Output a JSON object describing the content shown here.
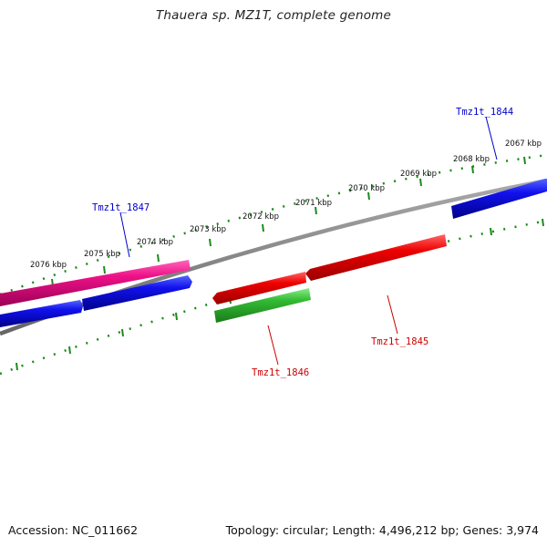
{
  "title": "Thauera sp. MZ1T, complete genome",
  "footer": {
    "accession": "Accession: NC_011662",
    "info": "Topology: circular; Length: 4,496,212 bp; Genes: 3,974"
  },
  "colors": {
    "backbone": "#808080",
    "tick": "#1a8a1a",
    "label_blue": "#0000cc",
    "label_red": "#cc0000"
  },
  "kbp_labels": [
    "2067 kbp",
    "2068 kbp",
    "2069 kbp",
    "2070 kbp",
    "2071 kbp",
    "2072 kbp",
    "2073 kbp",
    "2074 kbp",
    "2075 kbp",
    "2076 kbp"
  ],
  "genes": [
    {
      "id": "Tmz1t_1844",
      "color": "#0000dd",
      "label_color": "#0000cc",
      "labeled": true
    },
    {
      "id": "Tmz1t_1845",
      "color": "#ee0000",
      "label_color": "#cc0000",
      "labeled": true
    },
    {
      "id": "Tmz1t_1846",
      "color": "#33bb33",
      "label_color": "#cc0000",
      "labeled": true
    },
    {
      "id": "Tmz1t_1847",
      "color": "#ee1188",
      "label_color": "#0000cc",
      "labeled": true
    },
    {
      "id": "",
      "color": "#ee0000",
      "labeled": false
    },
    {
      "id": "",
      "color": "#0000dd",
      "labeled": false
    },
    {
      "id": "",
      "color": "#0000dd",
      "labeled": false
    }
  ]
}
